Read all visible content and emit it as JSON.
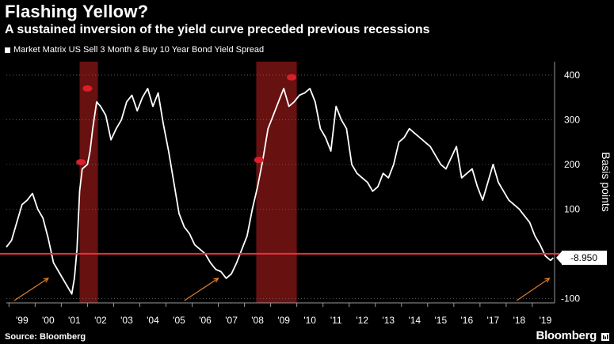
{
  "header": {
    "title": "Flashing Yellow?",
    "subtitle": "A sustained inversion of the yield curve preceded previous recessions"
  },
  "legend": {
    "label": "Market Matrix US Sell 3 Month & Buy 10 Year Bond Yield Spread"
  },
  "footer": {
    "source": "Source: Bloomberg",
    "brand": "Bloomberg"
  },
  "colors": {
    "line": "#ffffff",
    "zero_line": "#e8323c",
    "recession": "#7a1414",
    "arrow": "#e8802a",
    "grid": "#6b6b6b"
  },
  "chart_data": {
    "type": "line",
    "title": "Flashing Yellow?",
    "subtitle": "A sustained inversion of the yield curve preceded previous recessions",
    "ylabel": "Basis points",
    "xlim": [
      1998.4,
      2019.35
    ],
    "ylim": [
      -110,
      430
    ],
    "y_ticks": [
      400,
      300,
      200,
      100,
      0,
      -100
    ],
    "y_tick_labels": [
      "400",
      "300",
      "200",
      "100",
      "",
      "-100"
    ],
    "x_ticks": [
      1999,
      2000,
      2001,
      2002,
      2003,
      2004,
      2005,
      2006,
      2007,
      2008,
      2009,
      2010,
      2011,
      2012,
      2013,
      2014,
      2015,
      2016,
      2017,
      2018,
      2019
    ],
    "x_tick_labels": [
      "'99",
      "'00",
      "'01",
      "'02",
      "'03",
      "'04",
      "'05",
      "'06",
      "'07",
      "'08",
      "'09",
      "'10",
      "'11",
      "'12",
      "'13",
      "'14",
      "'15",
      "'16",
      "'17",
      "'18",
      "'19"
    ],
    "reference_line": {
      "y": 0
    },
    "last_value": -8.95,
    "last_value_label": "-8.950",
    "recessions": [
      {
        "start": 2001.2,
        "end": 2001.9
      },
      {
        "start": 2007.95,
        "end": 2009.5
      }
    ],
    "series": [
      {
        "x": [
          1998.4,
          1998.6,
          1998.8,
          1999.0,
          1999.2,
          1999.4,
          1999.6,
          1999.8,
          2000.0,
          2000.2,
          2000.4,
          2000.6,
          2000.8,
          2000.9,
          2001.0,
          2001.1,
          2001.2,
          2001.3,
          2001.5,
          2001.6,
          2001.7,
          2001.85,
          2002.0,
          2002.2,
          2002.4,
          2002.6,
          2002.8,
          2003.0,
          2003.2,
          2003.4,
          2003.6,
          2003.8,
          2004.0,
          2004.2,
          2004.4,
          2004.6,
          2004.8,
          2005.0,
          2005.2,
          2005.4,
          2005.6,
          2005.8,
          2006.0,
          2006.2,
          2006.4,
          2006.6,
          2006.8,
          2007.0,
          2007.2,
          2007.4,
          2007.6,
          2007.8,
          2008.0,
          2008.2,
          2008.4,
          2008.6,
          2008.8,
          2009.0,
          2009.2,
          2009.4,
          2009.6,
          2009.8,
          2010.0,
          2010.2,
          2010.4,
          2010.6,
          2010.8,
          2011.0,
          2011.2,
          2011.4,
          2011.6,
          2011.8,
          2012.0,
          2012.2,
          2012.4,
          2012.6,
          2012.8,
          2013.0,
          2013.2,
          2013.4,
          2013.6,
          2013.8,
          2014.0,
          2014.2,
          2014.4,
          2014.6,
          2014.8,
          2015.0,
          2015.2,
          2015.4,
          2015.6,
          2015.8,
          2016.0,
          2016.2,
          2016.4,
          2016.6,
          2016.8,
          2017.0,
          2017.2,
          2017.4,
          2017.6,
          2017.8,
          2018.0,
          2018.2,
          2018.4,
          2018.6,
          2018.8,
          2019.0,
          2019.2,
          2019.3
        ],
        "values": [
          15,
          30,
          70,
          110,
          120,
          135,
          100,
          80,
          35,
          -20,
          -40,
          -60,
          -80,
          -90,
          -55,
          10,
          140,
          190,
          200,
          230,
          280,
          340,
          330,
          310,
          255,
          280,
          300,
          340,
          355,
          320,
          350,
          370,
          330,
          360,
          290,
          230,
          160,
          90,
          60,
          45,
          20,
          10,
          0,
          -20,
          -35,
          -40,
          -55,
          -45,
          -20,
          10,
          40,
          100,
          150,
          210,
          280,
          310,
          340,
          370,
          330,
          340,
          355,
          360,
          370,
          340,
          280,
          260,
          230,
          330,
          300,
          280,
          200,
          180,
          170,
          160,
          140,
          150,
          180,
          170,
          200,
          250,
          260,
          280,
          270,
          260,
          250,
          240,
          220,
          200,
          190,
          215,
          240,
          170,
          180,
          190,
          150,
          120,
          160,
          200,
          160,
          140,
          120,
          110,
          100,
          85,
          70,
          40,
          20,
          -5,
          -15,
          -9
        ]
      }
    ]
  }
}
